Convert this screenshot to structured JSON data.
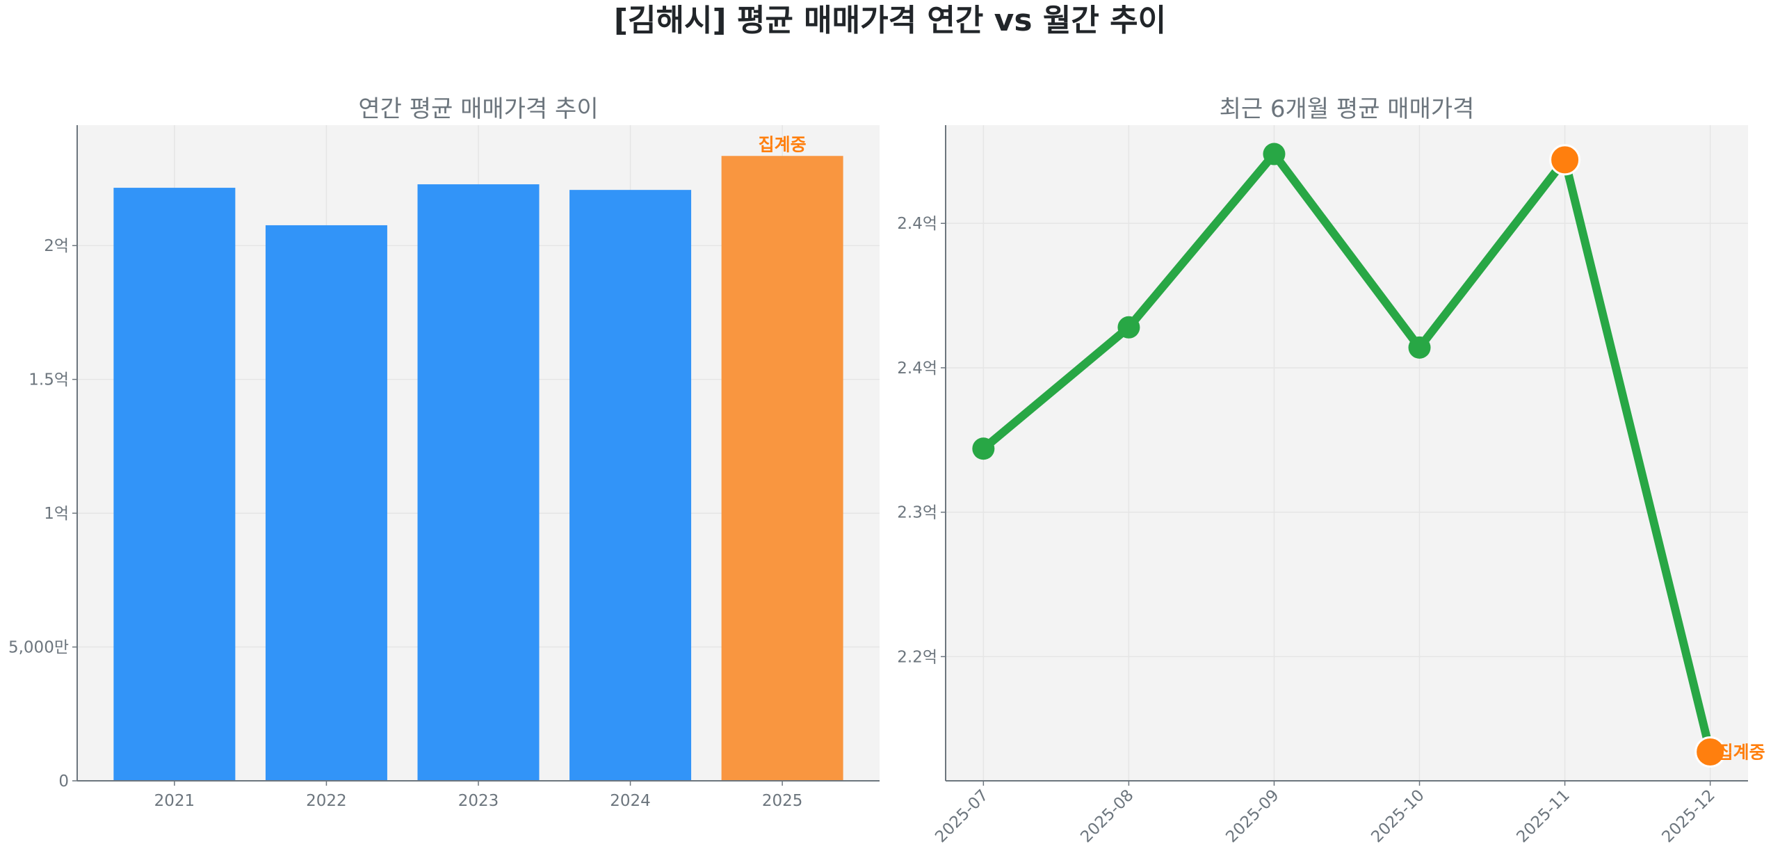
{
  "title": "[김해시] 평균 매매가격 연간 vs 월간 추이",
  "colors": {
    "bar": "#3294F8",
    "bar_highlight": "#F99640",
    "annotation": "#FF7F0E",
    "line": "#28A745",
    "point_highlight": "#FF7F0E",
    "axes_bg": "#F3F3F3",
    "grid": "#E5E5E5",
    "text": "#6C757D"
  },
  "chart_data": [
    {
      "type": "bar",
      "title": "연간 평균 매매가격 추이",
      "categories": [
        "2021",
        "2022",
        "2023",
        "2024",
        "2025"
      ],
      "values": [
        2.216,
        2.076,
        2.229,
        2.208,
        2.335
      ],
      "unit": "억",
      "highlight_index": 4,
      "annotation": {
        "index": 4,
        "text": "집계중"
      },
      "ylim": [
        0,
        2.45
      ],
      "yticks": [
        0,
        0.5,
        1,
        1.5,
        2
      ],
      "ytick_labels": [
        "0",
        "5,000만",
        "1억",
        "1.5억",
        "2억"
      ],
      "grid": true
    },
    {
      "type": "line",
      "title": "최근 6개월 평균 매매가격",
      "x": [
        "2025-07",
        "2025-08",
        "2025-09",
        "2025-10",
        "2025-11",
        "2025-12"
      ],
      "values": [
        2.322,
        2.364,
        2.424,
        2.357,
        2.422,
        2.217
      ],
      "unit": "억",
      "highlight_indices": [
        4,
        5
      ],
      "annotation": {
        "index": 5,
        "text": "집계중"
      },
      "ylim": [
        2.207,
        2.434
      ],
      "yticks": [
        2.25,
        2.3,
        2.35,
        2.4
      ],
      "ytick_labels": [
        "2.2억",
        "2.3억",
        "2.4억",
        "2.4억"
      ],
      "xtick_rotation": 45,
      "grid": true
    }
  ]
}
